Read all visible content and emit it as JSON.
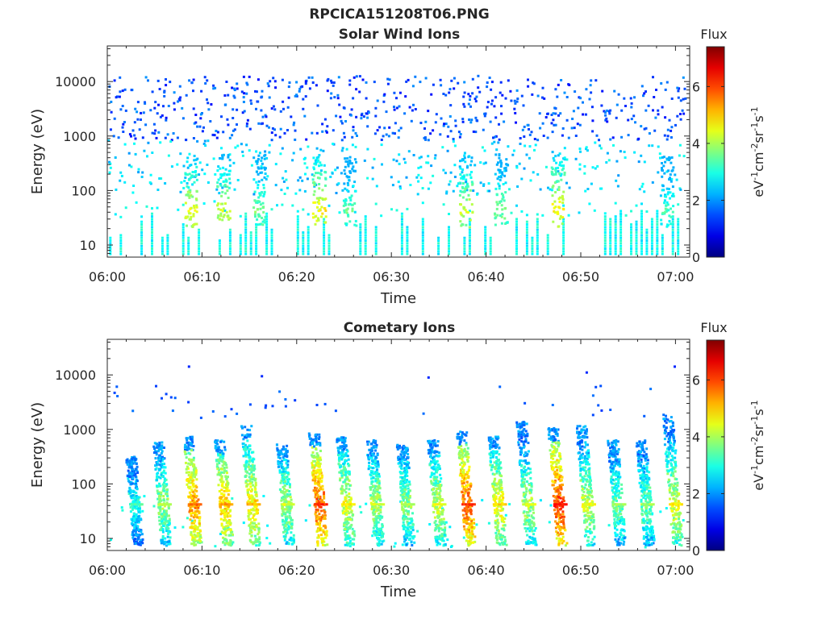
{
  "figure": {
    "title": "RPCICA151208T06.PNG"
  },
  "chart_data": [
    {
      "type": "heatmap",
      "title": "Solar Wind Ions",
      "xlabel": "Time",
      "ylabel": "Energy (eV)",
      "x_ticks": [
        "06:00",
        "06:10",
        "06:20",
        "06:30",
        "06:40",
        "06:50",
        "07:00"
      ],
      "x_range_minutes": [
        0,
        61.5
      ],
      "y_scale": "log",
      "y_ticks": [
        10,
        100,
        1000,
        10000
      ],
      "y_tick_labels": [
        "10",
        "100",
        "1000",
        "10000"
      ],
      "y_range": [
        6,
        45000
      ],
      "colorbar": {
        "title": "Flux",
        "label": "eV-1cm-2sr-1s-1",
        "range": [
          0,
          7.4
        ],
        "ticks": [
          0,
          2,
          4,
          6
        ],
        "tick_labels": [
          "0",
          "2",
          "4",
          "6"
        ],
        "colormap": "jet"
      },
      "features": {
        "background_scatter": {
          "energy_range": [
            800,
            12000
          ],
          "flux_range": [
            1,
            2
          ]
        },
        "mid_scatter": {
          "energy_range": [
            80,
            800
          ],
          "flux_range": [
            2,
            3
          ]
        },
        "low_band": {
          "energy_range": [
            6,
            60
          ],
          "flux_range": [
            2.5,
            3.2
          ]
        },
        "bursts": [
          {
            "time_min": 8.8,
            "peak_energy": 40,
            "peak_flux": 4.8
          },
          {
            "time_min": 12.2,
            "peak_energy": 40,
            "peak_flux": 4.6
          },
          {
            "time_min": 16.0,
            "peak_energy": 40,
            "peak_flux": 4.0
          },
          {
            "time_min": 22.3,
            "peak_energy": 40,
            "peak_flux": 5.0
          },
          {
            "time_min": 25.5,
            "peak_energy": 40,
            "peak_flux": 3.8
          },
          {
            "time_min": 37.8,
            "peak_energy": 40,
            "peak_flux": 4.6
          },
          {
            "time_min": 41.5,
            "peak_energy": 40,
            "peak_flux": 4.0
          },
          {
            "time_min": 47.5,
            "peak_energy": 40,
            "peak_flux": 5.0
          },
          {
            "time_min": 59.0,
            "peak_energy": 40,
            "peak_flux": 3.6
          }
        ]
      }
    },
    {
      "type": "heatmap",
      "title": "Cometary Ions",
      "xlabel": "Time",
      "ylabel": "Energy (eV)",
      "x_ticks": [
        "06:00",
        "06:10",
        "06:20",
        "06:30",
        "06:40",
        "06:50",
        "07:00"
      ],
      "x_range_minutes": [
        0,
        61.5
      ],
      "y_scale": "log",
      "y_ticks": [
        10,
        100,
        1000,
        10000
      ],
      "y_tick_labels": [
        "10",
        "100",
        "1000",
        "10000"
      ],
      "y_range": [
        6,
        45000
      ],
      "colorbar": {
        "title": "Flux",
        "label": "eV-1cm-2sr-1s-1",
        "range": [
          0,
          7.4
        ],
        "ticks": [
          0,
          2,
          4,
          6
        ],
        "tick_labels": [
          "0",
          "2",
          "4",
          "6"
        ],
        "colormap": "jet"
      },
      "features": {
        "isolated_high_energy_points": [
          {
            "time_min": 8.5,
            "energy": 13500
          },
          {
            "time_min": 16.2,
            "energy": 9000
          },
          {
            "time_min": 33.8,
            "energy": 8500
          },
          {
            "time_min": 50.5,
            "energy": 10500
          },
          {
            "time_min": 59.8,
            "energy": 13500
          }
        ],
        "bursts": [
          {
            "time_min": 2.8,
            "max_energy": 300,
            "peak_energy": 40,
            "peak_flux": 3.6
          },
          {
            "time_min": 5.8,
            "max_energy": 550,
            "peak_energy": 40,
            "peak_flux": 4.4
          },
          {
            "time_min": 9.0,
            "max_energy": 700,
            "peak_energy": 40,
            "peak_flux": 6.0
          },
          {
            "time_min": 12.3,
            "max_energy": 600,
            "peak_energy": 40,
            "peak_flux": 5.6
          },
          {
            "time_min": 15.2,
            "max_energy": 1100,
            "peak_energy": 40,
            "peak_flux": 5.4
          },
          {
            "time_min": 18.8,
            "max_energy": 500,
            "peak_energy": 40,
            "peak_flux": 4.6
          },
          {
            "time_min": 22.3,
            "max_energy": 800,
            "peak_energy": 40,
            "peak_flux": 6.4
          },
          {
            "time_min": 25.2,
            "max_energy": 700,
            "peak_energy": 40,
            "peak_flux": 5.0
          },
          {
            "time_min": 28.3,
            "max_energy": 600,
            "peak_energy": 40,
            "peak_flux": 4.6
          },
          {
            "time_min": 31.5,
            "max_energy": 500,
            "peak_energy": 40,
            "peak_flux": 4.4
          },
          {
            "time_min": 34.8,
            "max_energy": 600,
            "peak_energy": 40,
            "peak_flux": 4.8
          },
          {
            "time_min": 37.9,
            "max_energy": 900,
            "peak_energy": 40,
            "peak_flux": 6.4
          },
          {
            "time_min": 41.2,
            "max_energy": 700,
            "peak_energy": 40,
            "peak_flux": 5.2
          },
          {
            "time_min": 44.3,
            "max_energy": 1300,
            "peak_energy": 40,
            "peak_flux": 4.6
          },
          {
            "time_min": 47.6,
            "max_energy": 1000,
            "peak_energy": 40,
            "peak_flux": 6.6
          },
          {
            "time_min": 50.6,
            "max_energy": 1100,
            "peak_energy": 40,
            "peak_flux": 4.8
          },
          {
            "time_min": 53.8,
            "max_energy": 600,
            "peak_energy": 40,
            "peak_flux": 4.2
          },
          {
            "time_min": 56.8,
            "max_energy": 600,
            "peak_energy": 40,
            "peak_flux": 4.2
          },
          {
            "time_min": 59.8,
            "max_energy": 1800,
            "peak_energy": 40,
            "peak_flux": 5.0
          }
        ]
      }
    }
  ]
}
